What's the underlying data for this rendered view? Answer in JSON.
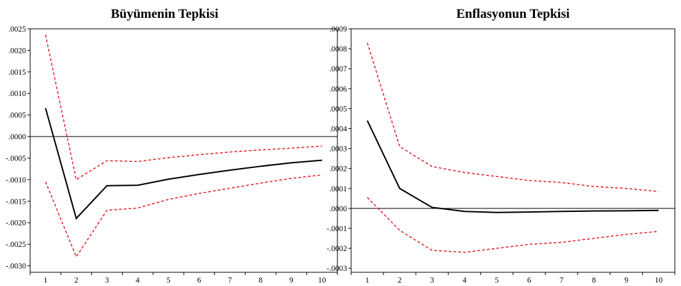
{
  "chart_data": [
    {
      "type": "line",
      "title": "Büyümenin Tepkisi",
      "xlabel": "",
      "ylabel": "",
      "x": [
        1,
        2,
        3,
        4,
        5,
        6,
        7,
        8,
        9,
        10
      ],
      "xticks": [
        "1",
        "2",
        "3",
        "4",
        "5",
        "6",
        "7",
        "8",
        "9",
        "10"
      ],
      "ylim": [
        -0.00315,
        0.0025
      ],
      "yticks": [
        ".0025",
        ".0020",
        ".0015",
        ".0010",
        ".0005",
        ".0000",
        "-.0005",
        "-.0010",
        "-.0015",
        "-.0020",
        "-.0025",
        "-.0030"
      ],
      "yticks_values": [
        0.0025,
        0.002,
        0.0015,
        0.001,
        0.0005,
        0.0,
        -0.0005,
        -0.001,
        -0.0015,
        -0.002,
        -0.0025,
        -0.003
      ],
      "zero_line": 0.0,
      "grid": false,
      "series": [
        {
          "role": "upper",
          "style": "dashed",
          "color": "#e0141e",
          "values": [
            0.00236,
            -0.001,
            -0.00056,
            -0.00058,
            -0.00049,
            -0.00042,
            -0.00036,
            -0.00031,
            -0.00027,
            -0.00022
          ]
        },
        {
          "role": "response",
          "style": "solid",
          "color": "#000000",
          "values": [
            0.00066,
            -0.0019,
            -0.00114,
            -0.00113,
            -0.00099,
            -0.00088,
            -0.00078,
            -0.00069,
            -0.00061,
            -0.00055
          ]
        },
        {
          "role": "lower",
          "style": "dashed",
          "color": "#e0141e",
          "values": [
            -0.00105,
            -0.00279,
            -0.00171,
            -0.00166,
            -0.00146,
            -0.00132,
            -0.0012,
            -0.00108,
            -0.00097,
            -0.00089
          ]
        }
      ]
    },
    {
      "type": "line",
      "title": "Enflasyonun Tepkisi",
      "xlabel": "",
      "ylabel": "",
      "x": [
        1,
        2,
        3,
        4,
        5,
        6,
        7,
        8,
        9,
        10
      ],
      "xticks": [
        "1",
        "2",
        "3",
        "4",
        "5",
        "6",
        "7",
        "8",
        "9",
        "10"
      ],
      "ylim": [
        -0.00032,
        0.0009
      ],
      "yticks": [
        ".0009",
        ".0008",
        ".0007",
        ".0006",
        ".0005",
        ".0004",
        ".0003",
        ".0002",
        ".0001",
        ".0000",
        "-.0001",
        "-.0002",
        "-.0003"
      ],
      "yticks_values": [
        0.0009,
        0.0008,
        0.0007,
        0.0006,
        0.0005,
        0.0004,
        0.0003,
        0.0002,
        0.0001,
        0.0,
        -0.0001,
        -0.0002,
        -0.0003
      ],
      "zero_line": 0.0,
      "grid": false,
      "series": [
        {
          "role": "upper",
          "style": "dashed",
          "color": "#e0141e",
          "values": [
            0.00083,
            0.00031,
            0.00021,
            0.00018,
            0.00016,
            0.00014,
            0.00013,
            0.00011,
            0.0001,
            8.5e-05
          ]
        },
        {
          "role": "response",
          "style": "solid",
          "color": "#000000",
          "values": [
            0.00044,
            0.0001,
            5e-06,
            -1.5e-05,
            -2e-05,
            -1.8e-05,
            -1.5e-05,
            -1.3e-05,
            -1.2e-05,
            -1e-05
          ]
        },
        {
          "role": "lower",
          "style": "dashed",
          "color": "#e0141e",
          "values": [
            5.5e-05,
            -0.00011,
            -0.00021,
            -0.00022,
            -0.0002,
            -0.00018,
            -0.00017,
            -0.00015,
            -0.00013,
            -0.000115
          ]
        }
      ]
    }
  ]
}
